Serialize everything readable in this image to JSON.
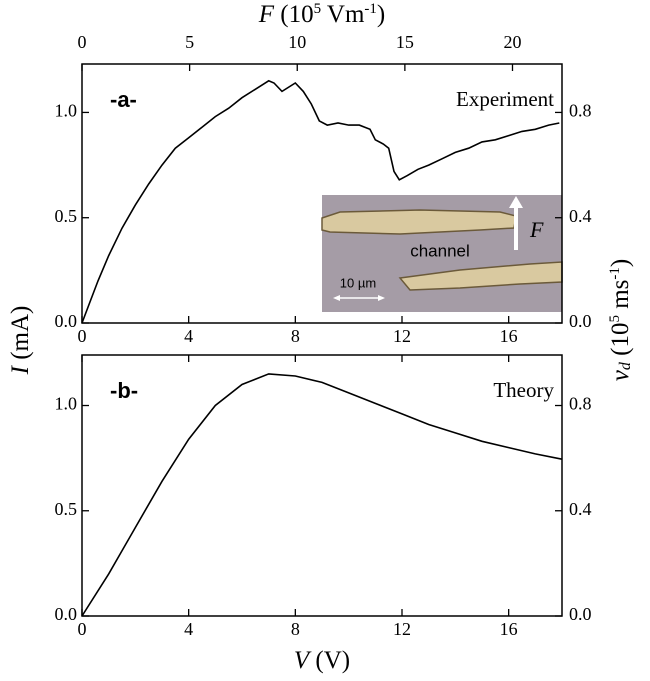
{
  "chart_data": [
    {
      "type": "line",
      "panel_label": "-a-",
      "annotation": "Experiment",
      "x2_label": [
        "F",
        " (10",
        "5",
        " Vm",
        "-1",
        ")"
      ],
      "y_label": [
        "I",
        " (mA)"
      ],
      "y2_label": [
        "v",
        "d",
        " (10",
        "5",
        " ms",
        "-1",
        ")"
      ],
      "inset": {
        "label": "channel",
        "field": "F",
        "scale": "10 µm"
      },
      "color": "#000000",
      "x": [
        0,
        0.3,
        0.6,
        1,
        1.5,
        2,
        2.5,
        3,
        3.5,
        4,
        4.5,
        5,
        5.5,
        6,
        6.5,
        7,
        7.2,
        7.5,
        8,
        8.3,
        8.6,
        8.9,
        9.2,
        9.6,
        10,
        10.4,
        10.8,
        11,
        11.3,
        11.5,
        11.7,
        11.9,
        12.2,
        12.6,
        13,
        13.5,
        14,
        14.5,
        15,
        15.5,
        16,
        16.5,
        17,
        17.5,
        17.9
      ],
      "values": [
        0,
        0.1,
        0.2,
        0.32,
        0.45,
        0.56,
        0.66,
        0.75,
        0.83,
        0.88,
        0.93,
        0.98,
        1.02,
        1.07,
        1.11,
        1.15,
        1.14,
        1.1,
        1.14,
        1.1,
        1.04,
        0.96,
        0.94,
        0.95,
        0.94,
        0.94,
        0.92,
        0.87,
        0.85,
        0.83,
        0.72,
        0.68,
        0.7,
        0.73,
        0.75,
        0.78,
        0.81,
        0.83,
        0.86,
        0.87,
        0.89,
        0.91,
        0.92,
        0.94,
        0.95
      ],
      "xlim": [
        0,
        18
      ],
      "xticks": [
        0,
        4,
        8,
        12,
        16
      ],
      "x2lim": [
        0,
        22.3
      ],
      "x2ticks": [
        0,
        5,
        10,
        15,
        20
      ],
      "ylim": [
        0,
        1.23
      ],
      "yticks": [
        {
          "value": 0,
          "label": "0.0"
        },
        0.5,
        {
          "value": 1,
          "label": "1.0"
        }
      ],
      "y2lim": [
        0,
        0.984
      ],
      "y2ticks": [
        {
          "value": 0,
          "label": "0.0"
        },
        0.4,
        0.8
      ]
    },
    {
      "type": "line",
      "panel_label": "-b-",
      "annotation": "Theory",
      "x_label": [
        "V",
        " (V)"
      ],
      "color": "#000000",
      "x": [
        0,
        1,
        2,
        3,
        4,
        5,
        6,
        7,
        8,
        9,
        10,
        11,
        12,
        13,
        14,
        15,
        16,
        17,
        18
      ],
      "values": [
        0,
        0.2,
        0.42,
        0.64,
        0.84,
        1.0,
        1.1,
        1.15,
        1.14,
        1.11,
        1.06,
        1.01,
        0.96,
        0.91,
        0.87,
        0.83,
        0.8,
        0.77,
        0.745
      ],
      "xlim": [
        0,
        18
      ],
      "xticks": [
        0,
        4,
        8,
        12,
        16
      ],
      "ylim": [
        0,
        1.24
      ],
      "yticks": [
        {
          "value": 0,
          "label": "0.0"
        },
        0.5,
        {
          "value": 1,
          "label": "1.0"
        }
      ],
      "y2lim": [
        0,
        0.992
      ],
      "y2ticks": [
        {
          "value": 0,
          "label": "0.0"
        },
        0.4,
        0.8
      ]
    }
  ]
}
